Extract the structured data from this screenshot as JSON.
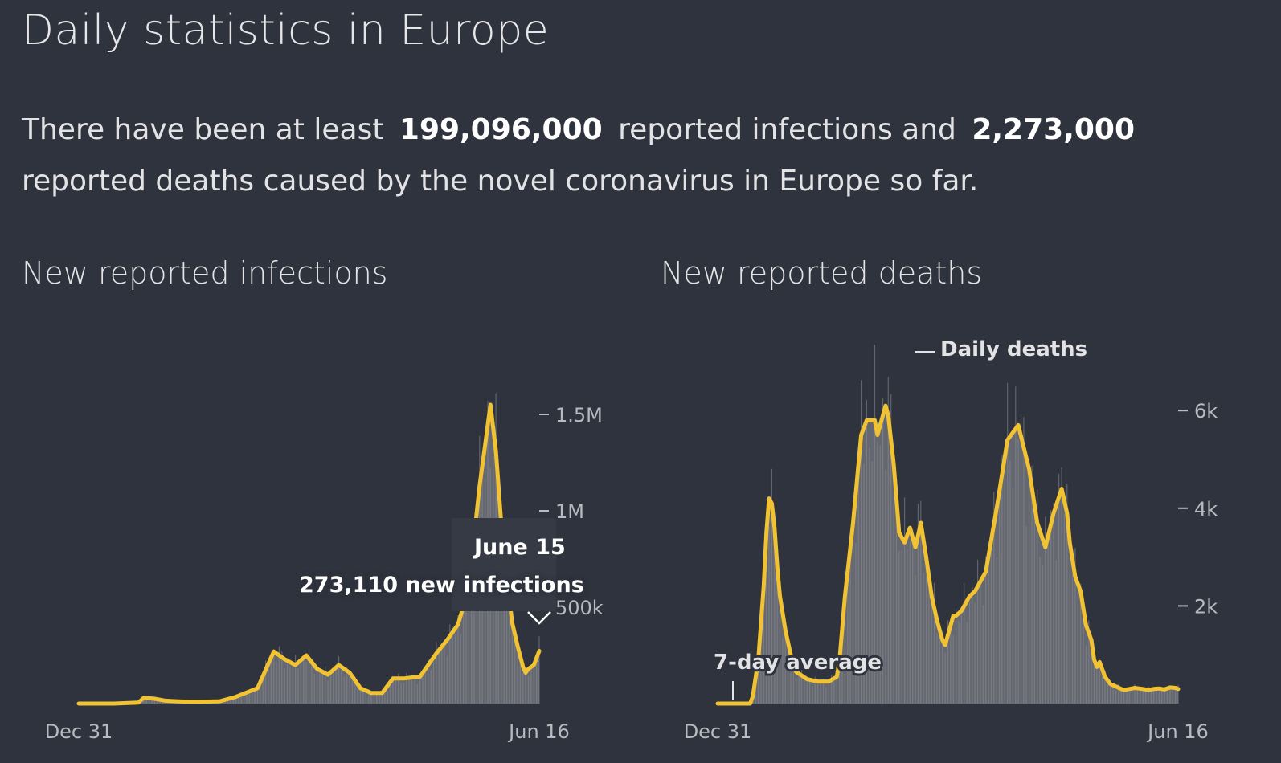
{
  "header": {
    "title": "Daily statistics in Europe"
  },
  "summary": {
    "prefix": "There have been at least",
    "infections": "199,096,000",
    "middle": "reported infections and",
    "deaths": "2,273,000",
    "suffix": "reported deaths caused by the novel coronavirus in Europe so far."
  },
  "colors": {
    "background": "#2f333d",
    "average_line": "#f1c232",
    "daily_bars": "#696c74"
  },
  "chart_data": [
    {
      "type": "area",
      "title": "New reported infections",
      "x_start": "Dec 31",
      "x_end": "Jun 16",
      "x_tick_labels": [
        "Dec 31",
        "Jun 16"
      ],
      "y_tick_labels": [
        "1.5M",
        "1M",
        "500k"
      ],
      "y_ticks": [
        1500000,
        1000000,
        500000
      ],
      "ylim": [
        0,
        1900000
      ],
      "series": [
        {
          "name": "7-day average",
          "x": [
            0,
            13,
            22,
            24,
            28,
            32,
            36,
            40,
            44,
            52,
            58,
            66,
            72,
            76,
            80,
            84,
            88,
            92,
            96,
            100,
            104,
            108,
            112,
            116,
            120,
            126,
            132,
            136,
            140,
            144,
            146,
            148,
            150,
            152,
            154,
            156,
            158,
            160,
            162,
            164,
            165,
            166,
            168,
            170
          ],
          "values": [
            0,
            0,
            5000,
            30000,
            25000,
            15000,
            12000,
            10000,
            9000,
            12000,
            35000,
            80000,
            270000,
            230000,
            200000,
            250000,
            180000,
            150000,
            200000,
            160000,
            80000,
            55000,
            55000,
            130000,
            130000,
            140000,
            260000,
            330000,
            410000,
            600000,
            870000,
            1130000,
            1340000,
            1550000,
            1310000,
            930000,
            650000,
            420000,
            300000,
            190000,
            160000,
            180000,
            200000,
            273110
          ]
        }
      ],
      "tooltip": {
        "date": "June 15",
        "value_text": "273,110 new infections"
      }
    },
    {
      "type": "area",
      "title": "New reported deaths",
      "x_start": "Dec 31",
      "x_end": "Jun 16",
      "x_tick_labels": [
        "Dec 31",
        "Jun 16"
      ],
      "y_tick_labels": [
        "6k",
        "4k",
        "2k"
      ],
      "y_ticks": [
        6000,
        4000,
        2000
      ],
      "ylim": [
        0,
        7500
      ],
      "annotations": {
        "daily_label": "Daily deaths",
        "average_label": "7-day average"
      },
      "series": [
        {
          "name": "7-day average",
          "x": [
            0,
            12,
            13,
            15,
            17,
            18,
            19,
            20,
            21,
            22,
            23,
            25,
            27,
            29,
            33,
            37,
            41,
            44,
            45,
            47,
            50,
            53,
            55,
            58,
            59,
            60,
            61,
            62,
            63,
            64,
            65,
            66,
            67,
            69,
            71,
            73,
            75,
            77,
            79,
            81,
            83,
            84,
            85,
            87,
            88,
            90,
            93,
            95,
            99,
            103,
            107,
            111,
            115,
            118,
            121,
            124,
            127,
            129,
            130,
            132,
            134,
            136,
            138,
            139,
            140,
            141,
            143,
            145,
            147,
            149,
            150,
            152,
            154,
            157,
            159,
            161,
            163,
            165,
            167,
            169,
            170
          ],
          "values": [
            0,
            0,
            150,
            900,
            2400,
            3500,
            4200,
            4100,
            3600,
            2800,
            2200,
            1500,
            1000,
            650,
            500,
            450,
            450,
            550,
            900,
            2200,
            3700,
            5500,
            5800,
            5800,
            5500,
            5700,
            5900,
            6100,
            5900,
            5400,
            4900,
            4200,
            3500,
            3300,
            3600,
            3200,
            3700,
            3000,
            2200,
            1700,
            1300,
            1200,
            1400,
            1800,
            1800,
            1900,
            2200,
            2300,
            2700,
            4000,
            5400,
            5700,
            4800,
            3700,
            3200,
            3900,
            4400,
            3900,
            3300,
            2600,
            2300,
            1600,
            1300,
            900,
            750,
            850,
            550,
            400,
            350,
            300,
            280,
            300,
            320,
            300,
            280,
            300,
            310,
            290,
            330,
            320,
            300
          ]
        }
      ]
    }
  ]
}
